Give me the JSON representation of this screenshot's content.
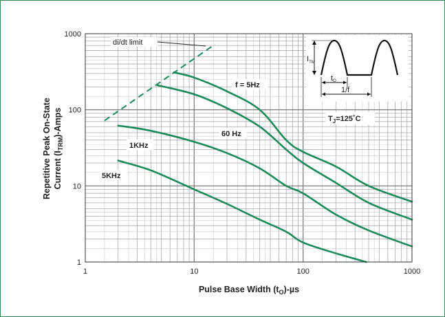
{
  "chart_data": {
    "type": "line",
    "title": "",
    "xlabel": "Pulse Base Width (tO)-µs",
    "xlabel_parts": {
      "main": "Pulse Base Width (t",
      "sub": "O",
      "end": ")-µs"
    },
    "ylabel_line1": "Repetitive Peak On-State",
    "ylabel_line2": {
      "main": "Current (I",
      "sub": "TRM",
      "end": ")-Amps"
    },
    "x_scale": "log",
    "y_scale": "log",
    "xlim": [
      1,
      1000
    ],
    "ylim": [
      1,
      1000
    ],
    "x_ticks": [
      {
        "value": 1,
        "label": "1"
      },
      {
        "value": 10,
        "label": "10"
      },
      {
        "value": 100,
        "label": "100"
      },
      {
        "value": 1000,
        "label": "1000"
      }
    ],
    "y_ticks": [
      {
        "value": 1,
        "label": "1"
      },
      {
        "value": 10,
        "label": "10"
      },
      {
        "value": 100,
        "label": "100"
      },
      {
        "value": 1000,
        "label": "1000"
      }
    ],
    "grid": true,
    "series": [
      {
        "name": "f = 5Hz",
        "color": "#1a8a5a",
        "points": [
          [
            6.5,
            310
          ],
          [
            10,
            265
          ],
          [
            20,
            175
          ],
          [
            40,
            100
          ],
          [
            70,
            40
          ],
          [
            100,
            28
          ],
          [
            200,
            18
          ],
          [
            400,
            10
          ],
          [
            1000,
            6.2
          ]
        ]
      },
      {
        "name": "60 Hz",
        "color": "#1a8a5a",
        "points": [
          [
            4.6,
            210
          ],
          [
            10,
            160
          ],
          [
            20,
            105
          ],
          [
            40,
            60
          ],
          [
            70,
            30
          ],
          [
            100,
            20
          ],
          [
            200,
            11
          ],
          [
            400,
            6
          ],
          [
            1000,
            3.6
          ]
        ]
      },
      {
        "name": "1KHz",
        "color": "#1a8a5a",
        "points": [
          [
            2,
            62
          ],
          [
            4,
            53
          ],
          [
            10,
            38
          ],
          [
            20,
            27
          ],
          [
            40,
            17
          ],
          [
            70,
            10
          ],
          [
            100,
            8
          ],
          [
            200,
            4.2
          ],
          [
            400,
            2.6
          ],
          [
            1000,
            1.6
          ]
        ]
      },
      {
        "name": "5KHz",
        "color": "#1a8a5a",
        "points": [
          [
            2,
            21.5
          ],
          [
            4,
            16
          ],
          [
            10,
            9
          ],
          [
            20,
            5.8
          ],
          [
            40,
            3.6
          ],
          [
            70,
            2.5
          ],
          [
            100,
            1.8
          ],
          [
            200,
            1.3
          ],
          [
            380,
            1.0
          ]
        ]
      }
    ],
    "limit_line": {
      "name": "di/dt limit",
      "color": "#1a8a5a",
      "dashed": true,
      "points": [
        [
          1.5,
          72
        ],
        [
          15.5,
          725
        ]
      ]
    },
    "annotations": {
      "tj_main": "T",
      "tj_sub": "J",
      "tj_end": "=125˚C",
      "inset_itm_main": "I",
      "inset_itm_sub": "TM",
      "inset_to_main": "t",
      "inset_to_sub": "O",
      "inset_period": "1/f"
    }
  }
}
